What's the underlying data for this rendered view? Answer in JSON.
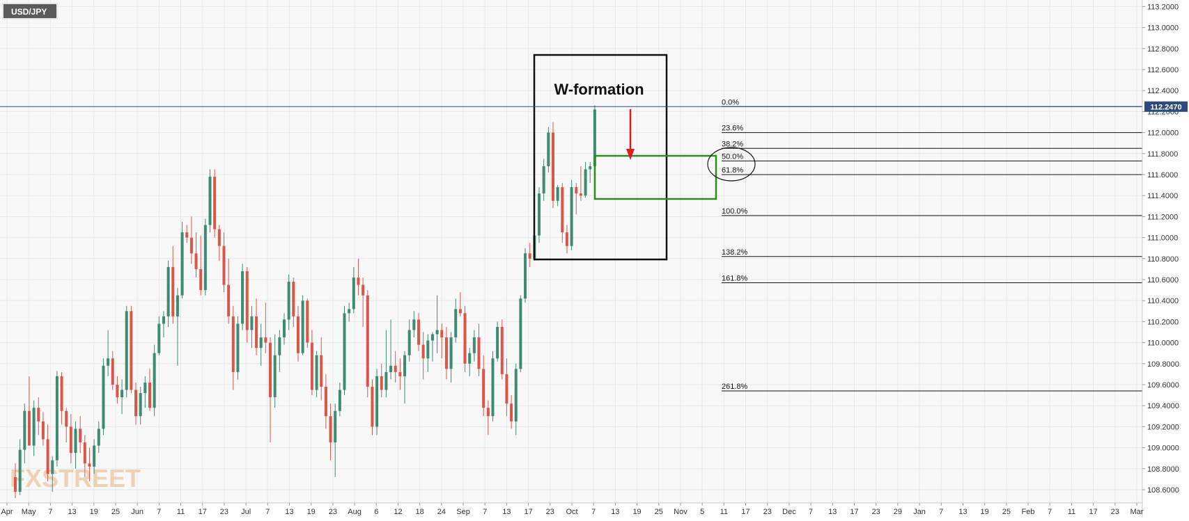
{
  "symbol": "USD/JPY",
  "watermark": "FXSTREET",
  "current_price_label": "112.2470",
  "chart_data": {
    "type": "candlestick",
    "symbol": "USD/JPY",
    "y_axis": {
      "ylim": [
        108.5,
        113.25
      ],
      "ticks": [
        "108.6000",
        "108.8000",
        "109.0000",
        "109.2000",
        "109.4000",
        "109.6000",
        "109.8000",
        "110.0000",
        "110.2000",
        "110.4000",
        "110.6000",
        "110.8000",
        "111.0000",
        "111.2000",
        "111.4000",
        "111.6000",
        "111.8000",
        "112.0000",
        "112.2000",
        "112.4000",
        "112.6000",
        "112.8000",
        "113.0000",
        "113.2000"
      ],
      "position": "right"
    },
    "x_axis": {
      "ticks": [
        "Apr",
        "May",
        "7",
        "13",
        "19",
        "25",
        "Jun",
        "7",
        "11",
        "17",
        "23",
        "Jul",
        "7",
        "13",
        "19",
        "23",
        "Aug",
        "6",
        "12",
        "18",
        "24",
        "Sep",
        "7",
        "13",
        "17",
        "23",
        "Oct",
        "7",
        "13",
        "19",
        "25",
        "Nov",
        "5",
        "11",
        "17",
        "23",
        "Dec",
        "7",
        "13",
        "17",
        "23",
        "29",
        "Jan",
        "7",
        "13",
        "19",
        "25",
        "Feb",
        "7",
        "11",
        "17",
        "23",
        "Mar"
      ]
    },
    "grid": true,
    "candles": [
      {
        "o": 108.72,
        "h": 108.85,
        "l": 108.52,
        "c": 108.58
      },
      {
        "o": 108.58,
        "h": 109.08,
        "l": 108.55,
        "c": 108.98
      },
      {
        "o": 108.98,
        "h": 109.42,
        "l": 108.85,
        "c": 109.35
      },
      {
        "o": 109.35,
        "h": 109.68,
        "l": 109.05,
        "c": 109.02
      },
      {
        "o": 109.02,
        "h": 109.45,
        "l": 108.92,
        "c": 109.38
      },
      {
        "o": 109.38,
        "h": 109.48,
        "l": 109.12,
        "c": 109.25
      },
      {
        "o": 109.25,
        "h": 109.34,
        "l": 109.02,
        "c": 109.08
      },
      {
        "o": 109.08,
        "h": 109.22,
        "l": 108.68,
        "c": 108.75
      },
      {
        "o": 108.75,
        "h": 108.92,
        "l": 108.58,
        "c": 108.88
      },
      {
        "o": 108.88,
        "h": 109.73,
        "l": 108.82,
        "c": 109.68
      },
      {
        "o": 109.68,
        "h": 109.72,
        "l": 109.22,
        "c": 109.35
      },
      {
        "o": 109.35,
        "h": 109.38,
        "l": 109.05,
        "c": 109.2
      },
      {
        "o": 109.2,
        "h": 109.32,
        "l": 108.85,
        "c": 108.95
      },
      {
        "o": 108.95,
        "h": 109.25,
        "l": 108.8,
        "c": 109.18
      },
      {
        "o": 109.18,
        "h": 109.3,
        "l": 108.95,
        "c": 109.05
      },
      {
        "o": 109.05,
        "h": 109.12,
        "l": 108.72,
        "c": 108.85
      },
      {
        "o": 108.85,
        "h": 109.0,
        "l": 108.68,
        "c": 108.82
      },
      {
        "o": 108.82,
        "h": 109.08,
        "l": 108.75,
        "c": 109.02
      },
      {
        "o": 109.02,
        "h": 109.25,
        "l": 108.95,
        "c": 109.18
      },
      {
        "o": 109.18,
        "h": 109.85,
        "l": 109.12,
        "c": 109.78
      },
      {
        "o": 109.78,
        "h": 110.12,
        "l": 109.68,
        "c": 109.85
      },
      {
        "o": 109.85,
        "h": 109.92,
        "l": 109.55,
        "c": 109.6
      },
      {
        "o": 109.6,
        "h": 109.68,
        "l": 109.42,
        "c": 109.48
      },
      {
        "o": 109.48,
        "h": 109.65,
        "l": 109.32,
        "c": 109.55
      },
      {
        "o": 109.55,
        "h": 110.35,
        "l": 109.48,
        "c": 110.3
      },
      {
        "o": 110.3,
        "h": 110.35,
        "l": 109.52,
        "c": 109.55
      },
      {
        "o": 109.55,
        "h": 109.62,
        "l": 109.22,
        "c": 109.3
      },
      {
        "o": 109.3,
        "h": 109.58,
        "l": 109.22,
        "c": 109.52
      },
      {
        "o": 109.52,
        "h": 109.68,
        "l": 109.38,
        "c": 109.62
      },
      {
        "o": 109.62,
        "h": 109.75,
        "l": 109.35,
        "c": 109.38
      },
      {
        "o": 109.38,
        "h": 109.98,
        "l": 109.3,
        "c": 109.9
      },
      {
        "o": 109.9,
        "h": 110.25,
        "l": 109.88,
        "c": 110.18
      },
      {
        "o": 110.18,
        "h": 110.3,
        "l": 110.05,
        "c": 110.25
      },
      {
        "o": 110.25,
        "h": 110.78,
        "l": 110.15,
        "c": 110.72
      },
      {
        "o": 110.72,
        "h": 110.92,
        "l": 110.18,
        "c": 110.25
      },
      {
        "o": 110.25,
        "h": 110.52,
        "l": 109.78,
        "c": 110.45
      },
      {
        "o": 110.45,
        "h": 111.15,
        "l": 110.42,
        "c": 111.05
      },
      {
        "o": 111.05,
        "h": 111.12,
        "l": 110.95,
        "c": 111.0
      },
      {
        "o": 111.0,
        "h": 111.2,
        "l": 110.75,
        "c": 110.85
      },
      {
        "o": 110.85,
        "h": 111.05,
        "l": 110.62,
        "c": 110.7
      },
      {
        "o": 110.7,
        "h": 111.02,
        "l": 110.45,
        "c": 110.5
      },
      {
        "o": 110.5,
        "h": 111.18,
        "l": 110.45,
        "c": 111.12
      },
      {
        "o": 111.12,
        "h": 111.65,
        "l": 111.05,
        "c": 111.58
      },
      {
        "o": 111.58,
        "h": 111.65,
        "l": 111.0,
        "c": 111.08
      },
      {
        "o": 111.08,
        "h": 111.12,
        "l": 110.78,
        "c": 110.92
      },
      {
        "o": 110.92,
        "h": 111.05,
        "l": 110.48,
        "c": 110.55
      },
      {
        "o": 110.55,
        "h": 110.8,
        "l": 110.18,
        "c": 110.25
      },
      {
        "o": 110.25,
        "h": 110.35,
        "l": 109.55,
        "c": 109.72
      },
      {
        "o": 109.72,
        "h": 110.25,
        "l": 109.65,
        "c": 110.18
      },
      {
        "o": 110.18,
        "h": 110.75,
        "l": 110.12,
        "c": 110.68
      },
      {
        "o": 110.68,
        "h": 110.72,
        "l": 110.0,
        "c": 110.12
      },
      {
        "o": 110.12,
        "h": 110.35,
        "l": 109.95,
        "c": 110.25
      },
      {
        "o": 110.25,
        "h": 110.42,
        "l": 109.88,
        "c": 109.95
      },
      {
        "o": 109.95,
        "h": 110.18,
        "l": 109.78,
        "c": 110.05
      },
      {
        "o": 110.05,
        "h": 110.38,
        "l": 109.9,
        "c": 110.0
      },
      {
        "o": 110.0,
        "h": 110.05,
        "l": 109.05,
        "c": 109.48
      },
      {
        "o": 109.48,
        "h": 110.08,
        "l": 109.38,
        "c": 109.88
      },
      {
        "o": 109.88,
        "h": 110.12,
        "l": 109.72,
        "c": 110.05
      },
      {
        "o": 110.05,
        "h": 110.28,
        "l": 109.98,
        "c": 110.22
      },
      {
        "o": 110.22,
        "h": 110.65,
        "l": 110.12,
        "c": 110.58
      },
      {
        "o": 110.58,
        "h": 110.62,
        "l": 110.15,
        "c": 110.25
      },
      {
        "o": 110.25,
        "h": 110.35,
        "l": 109.82,
        "c": 109.9
      },
      {
        "o": 109.9,
        "h": 110.45,
        "l": 109.88,
        "c": 110.4
      },
      {
        "o": 110.4,
        "h": 110.42,
        "l": 109.95,
        "c": 110.0
      },
      {
        "o": 110.0,
        "h": 110.12,
        "l": 109.5,
        "c": 109.55
      },
      {
        "o": 109.55,
        "h": 109.92,
        "l": 109.48,
        "c": 109.88
      },
      {
        "o": 109.88,
        "h": 110.05,
        "l": 109.45,
        "c": 109.58
      },
      {
        "o": 109.58,
        "h": 109.7,
        "l": 109.18,
        "c": 109.3
      },
      {
        "o": 109.3,
        "h": 109.42,
        "l": 108.88,
        "c": 109.05
      },
      {
        "o": 109.05,
        "h": 109.42,
        "l": 108.72,
        "c": 109.35
      },
      {
        "o": 109.35,
        "h": 109.62,
        "l": 109.3,
        "c": 109.55
      },
      {
        "o": 109.55,
        "h": 110.35,
        "l": 109.5,
        "c": 110.28
      },
      {
        "o": 110.28,
        "h": 110.38,
        "l": 110.2,
        "c": 110.32
      },
      {
        "o": 110.32,
        "h": 110.72,
        "l": 110.28,
        "c": 110.62
      },
      {
        "o": 110.62,
        "h": 110.8,
        "l": 110.45,
        "c": 110.55
      },
      {
        "o": 110.55,
        "h": 110.62,
        "l": 110.15,
        "c": 110.45
      },
      {
        "o": 110.45,
        "h": 110.5,
        "l": 109.48,
        "c": 109.58
      },
      {
        "o": 109.58,
        "h": 109.65,
        "l": 109.12,
        "c": 109.2
      },
      {
        "o": 109.2,
        "h": 109.75,
        "l": 109.12,
        "c": 109.68
      },
      {
        "o": 109.68,
        "h": 109.8,
        "l": 109.48,
        "c": 109.55
      },
      {
        "o": 109.55,
        "h": 110.12,
        "l": 109.48,
        "c": 109.72
      },
      {
        "o": 109.72,
        "h": 110.22,
        "l": 109.65,
        "c": 109.78
      },
      {
        "o": 109.78,
        "h": 109.92,
        "l": 109.62,
        "c": 109.72
      },
      {
        "o": 109.72,
        "h": 109.85,
        "l": 109.55,
        "c": 109.68
      },
      {
        "o": 109.68,
        "h": 109.92,
        "l": 109.42,
        "c": 109.88
      },
      {
        "o": 109.88,
        "h": 110.22,
        "l": 109.82,
        "c": 110.12
      },
      {
        "o": 110.12,
        "h": 110.3,
        "l": 110.05,
        "c": 110.22
      },
      {
        "o": 110.22,
        "h": 110.28,
        "l": 109.92,
        "c": 109.98
      },
      {
        "o": 109.98,
        "h": 110.1,
        "l": 109.65,
        "c": 109.85
      },
      {
        "o": 109.85,
        "h": 110.08,
        "l": 109.72,
        "c": 110.02
      },
      {
        "o": 110.02,
        "h": 110.1,
        "l": 109.82,
        "c": 110.08
      },
      {
        "o": 110.08,
        "h": 110.45,
        "l": 109.9,
        "c": 110.12
      },
      {
        "o": 110.12,
        "h": 110.18,
        "l": 109.85,
        "c": 110.05
      },
      {
        "o": 110.05,
        "h": 110.15,
        "l": 109.65,
        "c": 109.75
      },
      {
        "o": 109.75,
        "h": 110.1,
        "l": 109.62,
        "c": 110.05
      },
      {
        "o": 110.05,
        "h": 110.42,
        "l": 110.0,
        "c": 110.32
      },
      {
        "o": 110.32,
        "h": 110.48,
        "l": 110.25,
        "c": 110.28
      },
      {
        "o": 110.28,
        "h": 110.35,
        "l": 109.72,
        "c": 109.8
      },
      {
        "o": 109.8,
        "h": 109.95,
        "l": 109.68,
        "c": 109.9
      },
      {
        "o": 109.9,
        "h": 110.12,
        "l": 109.82,
        "c": 110.05
      },
      {
        "o": 110.05,
        "h": 110.18,
        "l": 109.68,
        "c": 109.75
      },
      {
        "o": 109.75,
        "h": 109.88,
        "l": 109.3,
        "c": 109.38
      },
      {
        "o": 109.38,
        "h": 109.45,
        "l": 109.12,
        "c": 109.3
      },
      {
        "o": 109.3,
        "h": 109.92,
        "l": 109.25,
        "c": 109.85
      },
      {
        "o": 109.85,
        "h": 110.2,
        "l": 109.82,
        "c": 110.15
      },
      {
        "o": 110.15,
        "h": 110.22,
        "l": 109.65,
        "c": 109.7
      },
      {
        "o": 109.7,
        "h": 109.85,
        "l": 109.3,
        "c": 109.42
      },
      {
        "o": 109.42,
        "h": 109.5,
        "l": 109.18,
        "c": 109.25
      },
      {
        "o": 109.25,
        "h": 109.8,
        "l": 109.12,
        "c": 109.75
      },
      {
        "o": 109.75,
        "h": 110.45,
        "l": 109.72,
        "c": 110.42
      },
      {
        "o": 110.42,
        "h": 110.9,
        "l": 110.38,
        "c": 110.85
      },
      {
        "o": 110.85,
        "h": 110.95,
        "l": 110.72,
        "c": 110.8
      },
      {
        "o": 110.8,
        "h": 111.08,
        "l": 110.78,
        "c": 111.02
      },
      {
        "o": 111.02,
        "h": 111.48,
        "l": 110.95,
        "c": 111.42
      },
      {
        "o": 111.42,
        "h": 111.75,
        "l": 111.35,
        "c": 111.68
      },
      {
        "o": 111.68,
        "h": 112.05,
        "l": 111.62,
        "c": 112.0
      },
      {
        "o": 112.0,
        "h": 112.1,
        "l": 111.28,
        "c": 111.35
      },
      {
        "o": 111.35,
        "h": 111.5,
        "l": 111.3,
        "c": 111.48
      },
      {
        "o": 111.48,
        "h": 111.52,
        "l": 110.95,
        "c": 111.05
      },
      {
        "o": 111.05,
        "h": 111.12,
        "l": 110.85,
        "c": 110.92
      },
      {
        "o": 110.92,
        "h": 111.55,
        "l": 110.88,
        "c": 111.48
      },
      {
        "o": 111.48,
        "h": 111.52,
        "l": 111.22,
        "c": 111.42
      },
      {
        "o": 111.42,
        "h": 111.68,
        "l": 111.35,
        "c": 111.4
      },
      {
        "o": 111.4,
        "h": 111.72,
        "l": 111.38,
        "c": 111.65
      },
      {
        "o": 111.65,
        "h": 111.72,
        "l": 111.52,
        "c": 111.68
      },
      {
        "o": 111.68,
        "h": 112.26,
        "l": 111.64,
        "c": 112.22
      }
    ],
    "fibonacci": [
      {
        "label": "0.0%",
        "price": 112.247
      },
      {
        "label": "23.6%",
        "price": 112.0
      },
      {
        "label": "38.2%",
        "price": 111.85
      },
      {
        "label": "50.0%",
        "price": 111.73
      },
      {
        "label": "61.8%",
        "price": 111.6
      },
      {
        "label": "100.0%",
        "price": 111.21
      },
      {
        "label": "138.2%",
        "price": 110.82
      },
      {
        "label": "161.8%",
        "price": 110.57
      },
      {
        "label": "261.8%",
        "price": 109.54
      }
    ],
    "annotations": {
      "pattern_label": "W-formation",
      "current_price": 112.247
    },
    "colors": {
      "bull": "#3d8b72",
      "bear": "#d9574a",
      "price_tag": "#2d4a7a",
      "target_box": "#2e8b1e",
      "arrow": "#e11b1b",
      "grid": "#e8e8e8"
    }
  }
}
